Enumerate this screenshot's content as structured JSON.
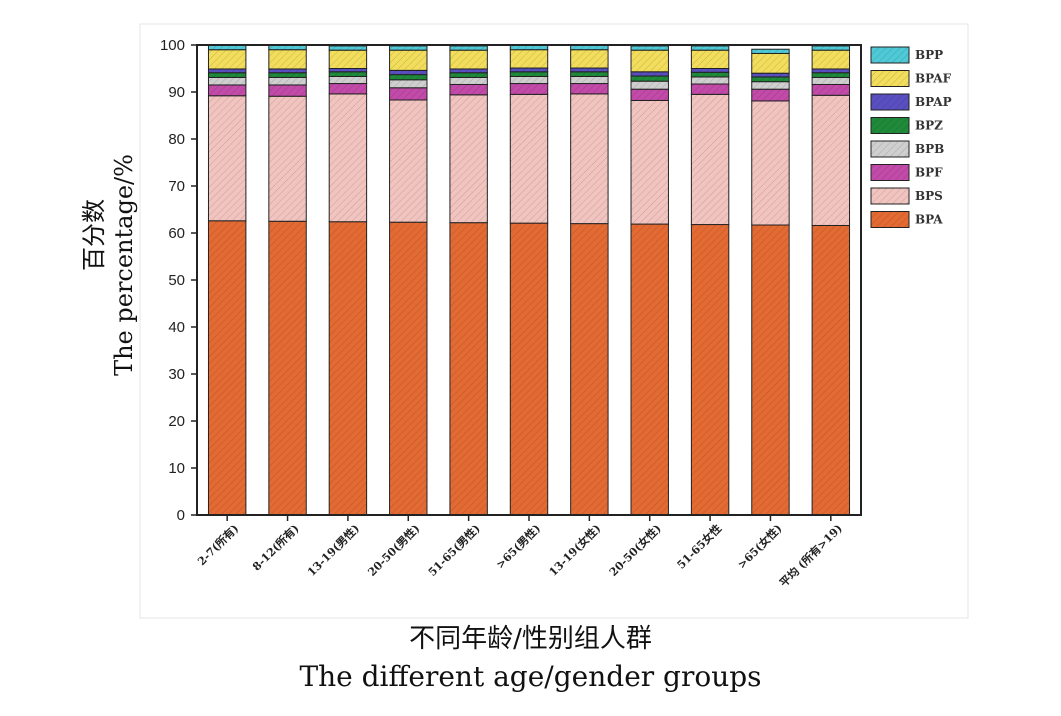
{
  "chart_data": {
    "type": "bar",
    "stacked": true,
    "categories": [
      "2-7(所有)",
      "8-12(所有)",
      "13-19(男性)",
      "20-50(男性)",
      "51-65(男性)",
      ">65(男性)",
      "13-19(女性)",
      "20-50(女性)",
      "51-65女性",
      ">65(女性)",
      "平均 (所有>19)"
    ],
    "series": [
      {
        "name": "BPA",
        "color": "#e36a33",
        "values": [
          62.6,
          62.5,
          62.4,
          62.3,
          62.2,
          62.1,
          62.0,
          61.9,
          61.8,
          61.7,
          61.6
        ]
      },
      {
        "name": "BPS",
        "color": "#f2c4c0",
        "values": [
          26.6,
          26.6,
          27.2,
          26.0,
          27.2,
          27.4,
          27.6,
          26.3,
          27.7,
          26.4,
          27.7
        ]
      },
      {
        "name": "BPF",
        "color": "#c24aa8",
        "values": [
          2.3,
          2.4,
          2.2,
          2.6,
          2.2,
          2.3,
          2.2,
          2.4,
          2.2,
          2.5,
          2.3
        ]
      },
      {
        "name": "BPB",
        "color": "#cfcfcf",
        "values": [
          1.6,
          1.6,
          1.5,
          1.7,
          1.5,
          1.5,
          1.5,
          1.7,
          1.5,
          1.6,
          1.5
        ]
      },
      {
        "name": "BPZ",
        "color": "#1e8a3a",
        "values": [
          1.0,
          1.0,
          1.0,
          1.1,
          1.0,
          1.0,
          1.0,
          1.1,
          1.0,
          1.0,
          1.0
        ]
      },
      {
        "name": "BPAP",
        "color": "#5a4fc0",
        "values": [
          0.8,
          0.8,
          0.7,
          0.9,
          0.8,
          0.8,
          0.8,
          0.9,
          0.8,
          0.8,
          0.8
        ]
      },
      {
        "name": "BPAF",
        "color": "#f2dd5c",
        "values": [
          4.1,
          4.1,
          3.9,
          4.3,
          4.0,
          3.9,
          3.9,
          4.6,
          3.9,
          4.2,
          4.0
        ]
      },
      {
        "name": "BPP",
        "color": "#4fc9d6",
        "values": [
          0.9,
          0.9,
          0.9,
          0.9,
          0.9,
          0.9,
          0.9,
          0.9,
          0.9,
          0.9,
          0.9
        ]
      }
    ],
    "ylim": [
      0,
      100
    ],
    "yticks": [
      0,
      10,
      20,
      30,
      40,
      50,
      60,
      70,
      80,
      90,
      100
    ],
    "ylabel_zh": "百分数",
    "ylabel_en": "The percentage/%",
    "xlabel_zh": "不同年龄/性别组人群",
    "xlabel_en": "The different age/gender groups",
    "legend": [
      "BPP",
      "BPAF",
      "BPAP",
      "BPZ",
      "BPB",
      "BPF",
      "BPS",
      "BPA"
    ],
    "legend_position": "right"
  }
}
